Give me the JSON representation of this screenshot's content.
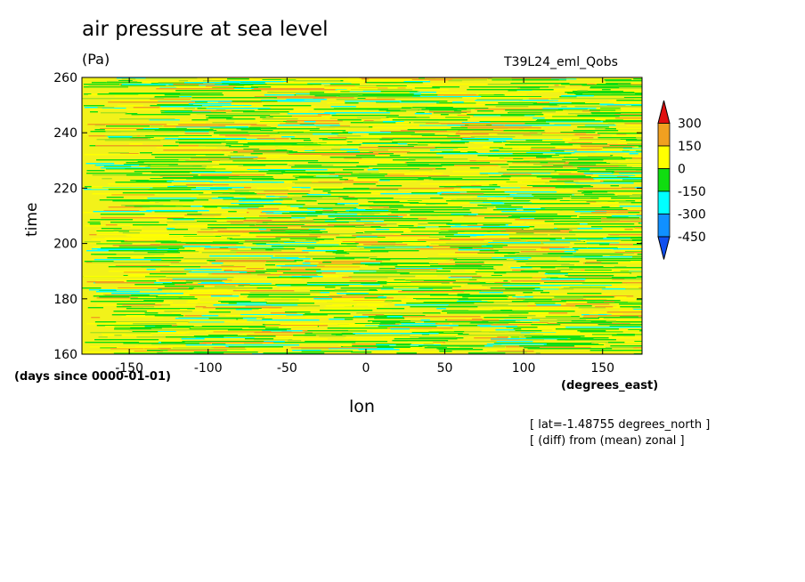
{
  "chart_data": {
    "type": "heatmap",
    "title": "air pressure at sea level",
    "units": "(Pa)",
    "run_label": "T39L24_eml_Qobs",
    "xlabel": "lon",
    "xunits": "(degrees_east)",
    "ylabel": "time",
    "yunits": "(days since 0000-01-01)",
    "xlim": [
      -180,
      175
    ],
    "ylim": [
      160,
      260
    ],
    "xticks": [
      "-150",
      "-100",
      "-50",
      "0",
      "50",
      "100",
      "150"
    ],
    "xtick_values": [
      -150,
      -100,
      -50,
      0,
      50,
      100,
      150
    ],
    "yticks": [
      "160",
      "180",
      "200",
      "220",
      "240",
      "260"
    ],
    "ytick_values": [
      160,
      180,
      200,
      220,
      240,
      260
    ],
    "colorbar": {
      "levels": [
        "300",
        "150",
        "0",
        "-150",
        "-300",
        "-450"
      ],
      "colors": [
        "#e01010",
        "#f0a020",
        "#ffff00",
        "#10dd10",
        "#00ffff",
        "#1090ff",
        "#1050f0"
      ]
    },
    "notes": [
      "[ lat=-1.48755 degrees_north ]",
      "[ (diff) from (mean) zonal ]"
    ]
  }
}
